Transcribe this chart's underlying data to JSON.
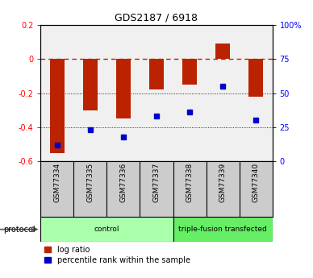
{
  "title": "GDS2187 / 6918",
  "samples": [
    "GSM77334",
    "GSM77335",
    "GSM77336",
    "GSM77337",
    "GSM77338",
    "GSM77339",
    "GSM77340"
  ],
  "log_ratio": [
    -0.55,
    -0.3,
    -0.35,
    -0.18,
    -0.15,
    0.09,
    -0.22
  ],
  "percentile_pct": [
    12,
    23,
    18,
    33,
    36,
    55,
    30
  ],
  "ylim": [
    -0.6,
    0.2
  ],
  "bar_color": "#bb2200",
  "dot_color": "#0000cc",
  "protocol_groups": [
    {
      "label": "control",
      "start": 0,
      "end": 4,
      "color": "#aaffaa"
    },
    {
      "label": "triple-fusion transfected",
      "start": 4,
      "end": 7,
      "color": "#66ee66"
    }
  ],
  "protocol_label": "protocol",
  "legend_items": [
    {
      "label": "log ratio",
      "color": "#bb2200"
    },
    {
      "label": "percentile rank within the sample",
      "color": "#0000cc"
    }
  ],
  "background_color": "#ffffff",
  "bar_width": 0.45,
  "main_facecolor": "#f0f0f0"
}
